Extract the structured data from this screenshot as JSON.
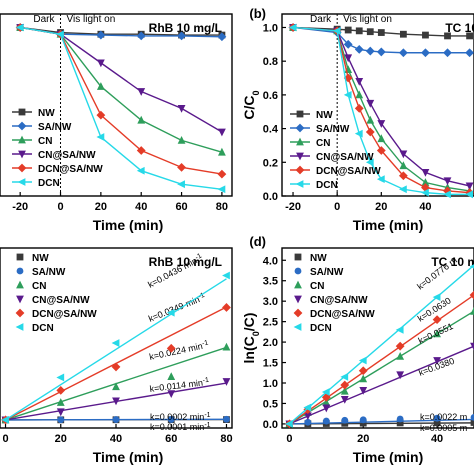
{
  "chart_data": [
    {
      "type": "line",
      "panel_label": "",
      "title": "RhB 10 mg/L",
      "xlabel": "Time (min)",
      "ylabel": "",
      "xlim": [
        -30,
        85
      ],
      "ylim": [
        0,
        1.08
      ],
      "xticks": [
        -20,
        0,
        20,
        40,
        60,
        80
      ],
      "yticks": [],
      "dark_label": "Dark",
      "light_label": "Vis light on",
      "x": [
        -20,
        0,
        20,
        40,
        60,
        80
      ],
      "series": [
        {
          "name": "NW",
          "color": "#3a3a3a",
          "marker": "square",
          "values": [
            1.0,
            0.97,
            0.96,
            0.96,
            0.955,
            0.955
          ]
        },
        {
          "name": "SA/NW",
          "color": "#2b6cc4",
          "marker": "diamond",
          "values": [
            1.0,
            0.96,
            0.955,
            0.95,
            0.95,
            0.945
          ]
        },
        {
          "name": "CN",
          "color": "#2e9e5b",
          "marker": "triangle",
          "values": [
            1.0,
            0.96,
            0.65,
            0.45,
            0.33,
            0.26
          ]
        },
        {
          "name": "CN@SA/NW",
          "color": "#5a1a8c",
          "marker": "triangle-down",
          "values": [
            1.0,
            0.96,
            0.79,
            0.62,
            0.52,
            0.38
          ]
        },
        {
          "name": "DCN@SA/NW",
          "color": "#e43c28",
          "marker": "diamond",
          "values": [
            1.0,
            0.96,
            0.48,
            0.27,
            0.17,
            0.13
          ]
        },
        {
          "name": "DCN",
          "color": "#26d9e8",
          "marker": "triangle-left",
          "values": [
            1.0,
            0.96,
            0.35,
            0.15,
            0.07,
            0.04
          ]
        }
      ]
    },
    {
      "type": "line",
      "panel_label": "(b)",
      "title": "TC 10",
      "xlabel": "Time (min)",
      "ylabel": "C/C0",
      "xlim": [
        -25,
        62
      ],
      "ylim": [
        0,
        1.08
      ],
      "xticks": [
        -20,
        0,
        20,
        40
      ],
      "yticks": [
        0.0,
        0.2,
        0.4,
        0.6,
        0.8,
        1.0
      ],
      "dark_label": "Dark",
      "light_label": "Vis light on",
      "x": [
        -20,
        0,
        5,
        10,
        15,
        20,
        30,
        40,
        50,
        60
      ],
      "series": [
        {
          "name": "NW",
          "color": "#3a3a3a",
          "marker": "square",
          "values": [
            1.0,
            0.99,
            0.985,
            0.98,
            0.975,
            0.97,
            0.96,
            0.955,
            0.95,
            0.95
          ]
        },
        {
          "name": "SA/NW",
          "color": "#2b6cc4",
          "marker": "diamond",
          "values": [
            1.0,
            0.97,
            0.9,
            0.87,
            0.86,
            0.855,
            0.85,
            0.85,
            0.85,
            0.85
          ]
        },
        {
          "name": "CN",
          "color": "#2e9e5b",
          "marker": "triangle",
          "values": [
            1.0,
            0.98,
            0.75,
            0.6,
            0.45,
            0.34,
            0.18,
            0.08,
            0.05,
            0.03
          ]
        },
        {
          "name": "CN@SA/NW",
          "color": "#5a1a8c",
          "marker": "triangle-down",
          "values": [
            1.0,
            0.98,
            0.82,
            0.68,
            0.55,
            0.43,
            0.25,
            0.14,
            0.09,
            0.06
          ]
        },
        {
          "name": "DCN@SA/NW",
          "color": "#e43c28",
          "marker": "diamond",
          "values": [
            1.0,
            0.98,
            0.7,
            0.52,
            0.38,
            0.27,
            0.12,
            0.05,
            0.03,
            0.02
          ]
        },
        {
          "name": "DCN",
          "color": "#26d9e8",
          "marker": "triangle-left",
          "values": [
            1.0,
            0.98,
            0.6,
            0.37,
            0.2,
            0.1,
            0.04,
            0.02,
            0.01,
            0.01
          ]
        }
      ]
    },
    {
      "type": "scatter",
      "panel_label": "",
      "title": "RhB 10 mg/L",
      "xlabel": "Time (min)",
      "ylabel": "",
      "xlim": [
        -2,
        82
      ],
      "ylim": [
        -0.2,
        4.25
      ],
      "xticks": [
        0,
        20,
        40,
        60,
        80
      ],
      "yticks": [],
      "x": [
        0,
        20,
        40,
        60,
        80
      ],
      "series": [
        {
          "name": "NW",
          "color": "#3a3a3a",
          "marker": "square",
          "values": [
            0.0,
            0.002,
            0.004,
            0.006,
            0.008
          ],
          "k": 0.0001,
          "k_label": "k=0.0001 min⁻¹"
        },
        {
          "name": "SA/NW",
          "color": "#2b6cc4",
          "marker": "circle",
          "values": [
            0.0,
            0.004,
            0.008,
            0.012,
            0.016
          ],
          "k": 0.0002,
          "k_label": "k=0.0002 min⁻¹"
        },
        {
          "name": "CN",
          "color": "#2e9e5b",
          "marker": "triangle",
          "values": [
            0.0,
            0.43,
            0.82,
            1.07,
            1.8
          ],
          "k": 0.0224,
          "k_label": "k=0.0224 min⁻¹"
        },
        {
          "name": "CN@SA/NW",
          "color": "#5a1a8c",
          "marker": "triangle-down",
          "values": [
            0.0,
            0.2,
            0.47,
            0.65,
            0.95
          ],
          "k": 0.0114,
          "k_label": "k=0.0114 min⁻¹"
        },
        {
          "name": "DCN@SA/NW",
          "color": "#e43c28",
          "marker": "diamond",
          "values": [
            0.0,
            0.73,
            1.31,
            1.77,
            2.78
          ],
          "k": 0.0349,
          "k_label": "k=0.0349 min⁻¹"
        },
        {
          "name": "DCN",
          "color": "#26d9e8",
          "marker": "triangle-left",
          "values": [
            0.0,
            1.05,
            1.9,
            2.65,
            3.57
          ],
          "k": 0.0436,
          "k_label": "k=0.0436 min⁻¹"
        }
      ]
    },
    {
      "type": "scatter",
      "panel_label": "(d)",
      "title": "TC 10 m",
      "xlabel": "Time (min)",
      "ylabel": "ln(C0/C)",
      "xlim": [
        -2,
        50
      ],
      "ylim": [
        -0.1,
        4.3
      ],
      "xticks": [
        0,
        20,
        40
      ],
      "yticks": [
        0,
        0.5,
        1.0,
        1.5,
        2.0,
        2.5,
        3.0,
        3.5,
        4.0
      ],
      "x": [
        0,
        5,
        10,
        15,
        20,
        30,
        40,
        50
      ],
      "series": [
        {
          "name": "NW",
          "color": "#3a3a3a",
          "marker": "square",
          "values": [
            0.0,
            0.005,
            0.01,
            0.015,
            0.02,
            0.025,
            0.03,
            0.035
          ],
          "k": 0.0005,
          "k_label": "k=0.0005 m"
        },
        {
          "name": "SA/NW",
          "color": "#2b6cc4",
          "marker": "circle",
          "values": [
            0.0,
            0.04,
            0.07,
            0.09,
            0.1,
            0.12,
            0.14,
            0.16
          ],
          "k": 0.0022,
          "k_label": "k=0.0022 m"
        },
        {
          "name": "CN",
          "color": "#2e9e5b",
          "marker": "triangle",
          "values": [
            0.0,
            0.28,
            0.52,
            0.8,
            1.1,
            1.65,
            2.2,
            2.75
          ],
          "k": 0.0551,
          "k_label": "k=0.0551"
        },
        {
          "name": "CN@SA/NW",
          "color": "#5a1a8c",
          "marker": "triangle-down",
          "values": [
            0.0,
            0.2,
            0.39,
            0.6,
            0.82,
            1.2,
            1.55,
            1.9
          ],
          "k": 0.038,
          "k_label": "k=0.0380"
        },
        {
          "name": "DCN@SA/NW",
          "color": "#e43c28",
          "marker": "diamond",
          "values": [
            0.0,
            0.35,
            0.65,
            0.95,
            1.3,
            1.9,
            2.55,
            3.15
          ],
          "k": 0.063,
          "k_label": "k=0.0630"
        },
        {
          "name": "DCN",
          "color": "#26d9e8",
          "marker": "triangle-left",
          "values": [
            0.0,
            0.4,
            0.78,
            1.15,
            1.55,
            2.3,
            3.1,
            3.85
          ],
          "k": 0.0776,
          "k_label": "k=0.0776 m"
        }
      ]
    }
  ]
}
